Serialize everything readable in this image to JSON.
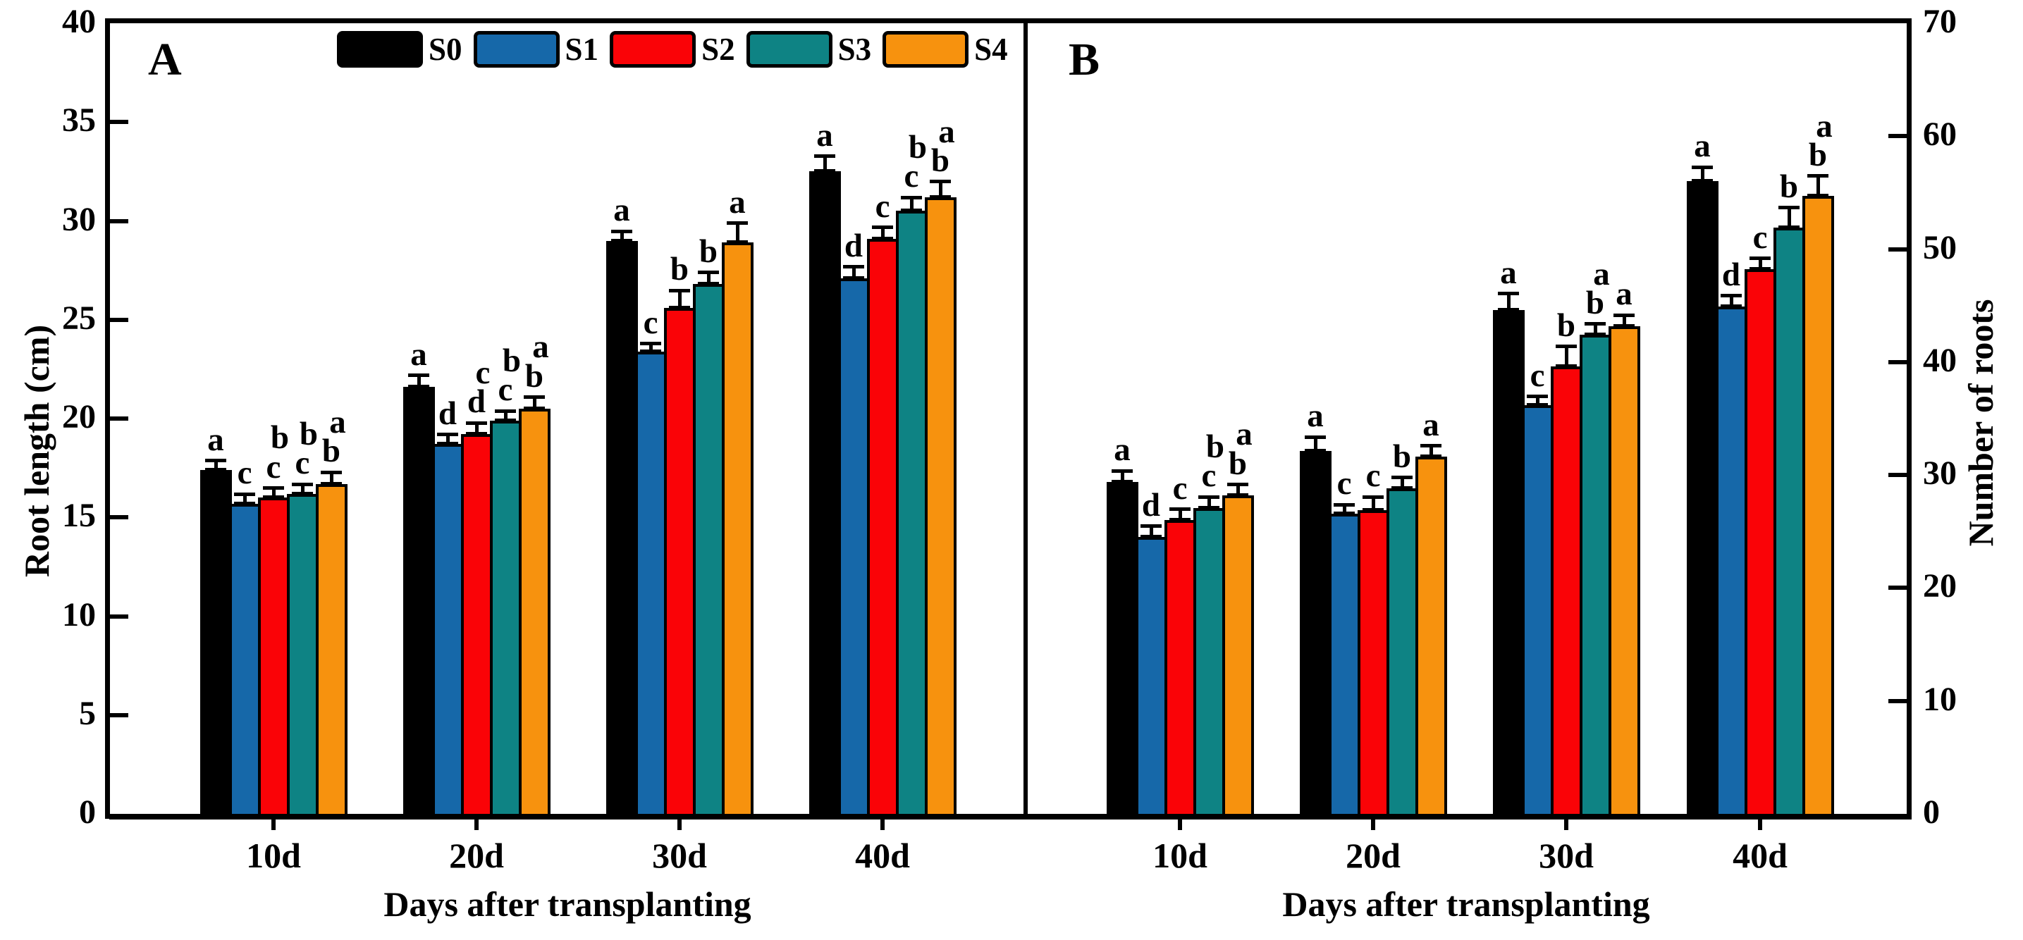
{
  "figure": {
    "background": "#ffffff",
    "frame_color": "#000000"
  },
  "legend": {
    "items": [
      {
        "label": "S0",
        "color": "#000000"
      },
      {
        "label": "S1",
        "color": "#1668a9"
      },
      {
        "label": "S2",
        "color": "#fa0307"
      },
      {
        "label": "S3",
        "color": "#0e8384"
      },
      {
        "label": "S4",
        "color": "#f7920e"
      }
    ]
  },
  "chart_data": [
    {
      "type": "bar",
      "panel_label": "A",
      "ylabel": "Root length (cm)",
      "xlabel": "Days after transplanting",
      "ylim": [
        0,
        40
      ],
      "yticks": [
        0,
        5,
        10,
        15,
        20,
        25,
        30,
        35,
        40
      ],
      "axis_side": "left",
      "grid": false,
      "legend_position": "top-left-inside",
      "categories": [
        "10d",
        "20d",
        "30d",
        "40d"
      ],
      "series": [
        {
          "name": "S0",
          "color": "#000000",
          "values": [
            17.4,
            21.6,
            29.0,
            32.5
          ],
          "errors": [
            0.5,
            0.6,
            0.5,
            0.8
          ],
          "letters": [
            "a",
            "a",
            "a",
            "a"
          ]
        },
        {
          "name": "S1",
          "color": "#1668a9",
          "values": [
            15.7,
            18.7,
            23.4,
            27.1
          ],
          "errors": [
            0.5,
            0.5,
            0.4,
            0.6
          ],
          "letters": [
            "c",
            "d",
            "c",
            "d"
          ]
        },
        {
          "name": "S2",
          "color": "#fa0307",
          "values": [
            16.0,
            19.2,
            25.6,
            29.1
          ],
          "errors": [
            0.5,
            0.6,
            0.9,
            0.6
          ],
          "letters": [
            "bc",
            "cd",
            "b",
            "c"
          ]
        },
        {
          "name": "S3",
          "color": "#0e8384",
          "values": [
            16.2,
            19.9,
            26.8,
            30.5
          ],
          "errors": [
            0.5,
            0.5,
            0.6,
            0.7
          ],
          "letters": [
            "bc",
            "bc",
            "b",
            "bc"
          ]
        },
        {
          "name": "S4",
          "color": "#f7920e",
          "values": [
            16.7,
            20.5,
            28.9,
            31.2
          ],
          "errors": [
            0.6,
            0.6,
            1.0,
            0.8
          ],
          "letters": [
            "ab",
            "ab",
            "a",
            "ab"
          ]
        }
      ]
    },
    {
      "type": "bar",
      "panel_label": "B",
      "ylabel": "Number of roots",
      "xlabel": "Days after transplanting",
      "ylim": [
        0,
        70
      ],
      "yticks": [
        0,
        10,
        20,
        30,
        40,
        50,
        60,
        70
      ],
      "axis_side": "right",
      "grid": false,
      "categories": [
        "10d",
        "20d",
        "30d",
        "40d"
      ],
      "series": [
        {
          "name": "S0",
          "color": "#000000",
          "values": [
            29.4,
            32.1,
            44.6,
            56.0
          ],
          "errors": [
            1.0,
            1.3,
            1.5,
            1.3
          ],
          "letters": [
            "a",
            "a",
            "a",
            "a"
          ]
        },
        {
          "name": "S1",
          "color": "#1668a9",
          "values": [
            24.5,
            26.6,
            36.2,
            44.9
          ],
          "errors": [
            1.0,
            0.8,
            0.8,
            1.0
          ],
          "letters": [
            "d",
            "c",
            "c",
            "d"
          ]
        },
        {
          "name": "S2",
          "color": "#fa0307",
          "values": [
            26.0,
            26.9,
            39.6,
            48.2
          ],
          "errors": [
            1.0,
            1.2,
            1.8,
            1.0
          ],
          "letters": [
            "c",
            "c",
            "b",
            "c"
          ]
        },
        {
          "name": "S3",
          "color": "#0e8384",
          "values": [
            27.1,
            28.8,
            42.4,
            51.9
          ],
          "errors": [
            1.0,
            1.0,
            1.0,
            1.8
          ],
          "letters": [
            "bc",
            "b",
            "ab",
            "b"
          ]
        },
        {
          "name": "S4",
          "color": "#f7920e",
          "values": [
            28.2,
            31.6,
            43.2,
            54.7
          ],
          "errors": [
            1.0,
            1.0,
            1.0,
            1.8
          ],
          "letters": [
            "ab",
            "a",
            "a",
            "ab"
          ]
        }
      ]
    }
  ]
}
